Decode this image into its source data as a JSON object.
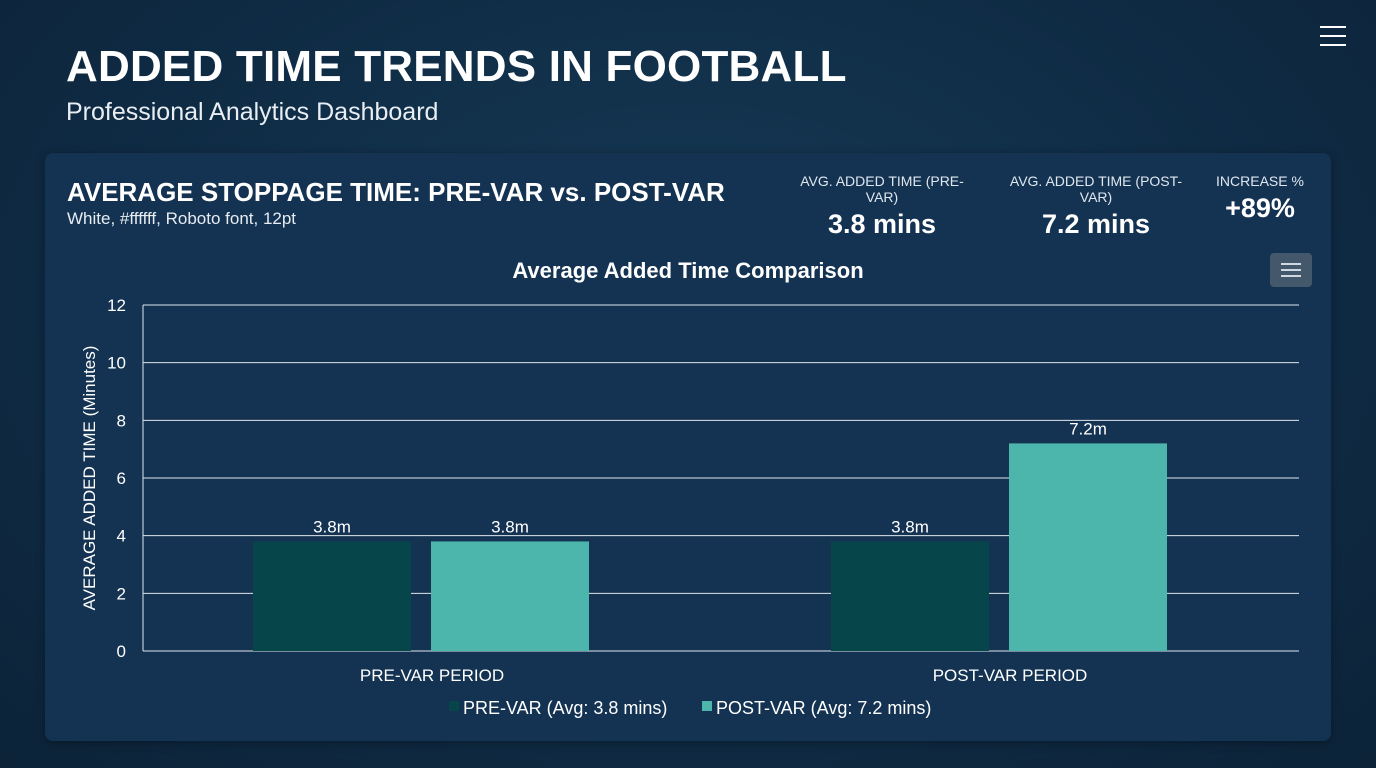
{
  "header": {
    "title": "ADDED TIME TRENDS IN FOOTBALL",
    "subtitle": "Professional Analytics Dashboard",
    "menu_icon": "hamburger-icon"
  },
  "card": {
    "title": "AVERAGE STOPPAGE TIME: PRE-VAR vs. POST-VAR",
    "note": "White, #ffffff, Roboto font, 12pt",
    "stats": [
      {
        "label": "AVG. ADDED TIME (PRE-VAR)",
        "value": "3.8 mins"
      },
      {
        "label": "AVG. ADDED TIME (POST-VAR)",
        "value": "7.2 mins"
      },
      {
        "label": "INCREASE %",
        "value": "+89%"
      }
    ],
    "chart_menu_icon": "hamburger-icon"
  },
  "chart_data": {
    "type": "bar",
    "title": "Average Added Time Comparison",
    "xlabel": "",
    "ylabel": "AVERAGE ADDED TIME (Minutes)",
    "categories": [
      "PRE-VAR PERIOD",
      "POST-VAR PERIOD"
    ],
    "series": [
      {
        "name": "PRE-VAR (Avg: 3.8 mins)",
        "values": [
          3.8,
          3.8
        ],
        "labels": [
          "3.8m",
          "3.8m"
        ],
        "color": "#06454a"
      },
      {
        "name": "POST-VAR (Avg: 7.2 mins)",
        "values": [
          3.8,
          7.2
        ],
        "labels": [
          "3.8m",
          "7.2m"
        ],
        "color": "#4db6ac"
      }
    ],
    "ylim": [
      0,
      12
    ],
    "yticks": [
      "0",
      "2",
      "4",
      "6",
      "8",
      "10",
      "12"
    ],
    "grid": true,
    "legend": "bottom"
  }
}
